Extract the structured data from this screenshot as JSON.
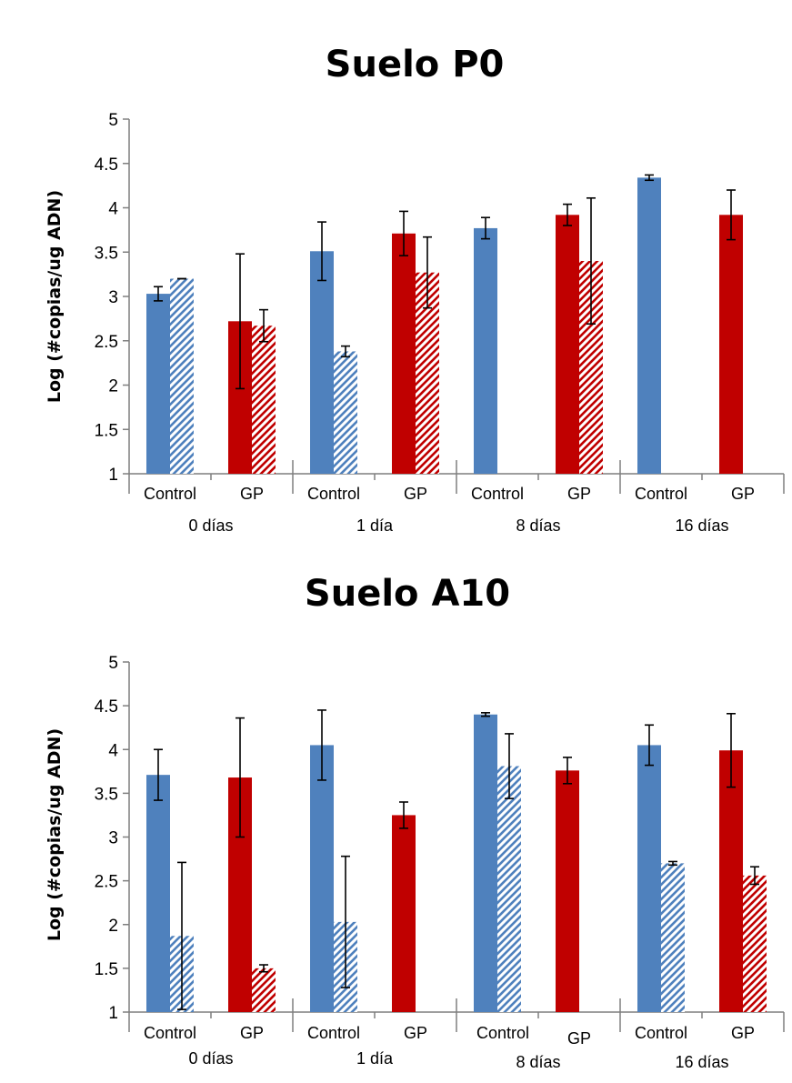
{
  "chart_data": [
    {
      "type": "bar",
      "title": "Suelo P0",
      "ylabel": "Log (#copias/ug ADN)",
      "xlabel": "",
      "ylim": [
        1,
        5
      ],
      "yticks": [
        "1",
        "1.5",
        "2",
        "2.5",
        "3",
        "3.5",
        "4",
        "4.5",
        "5"
      ],
      "grid": false,
      "categories": [
        "Control",
        "GP",
        "Control",
        "GP",
        "Control",
        "GP",
        "Control",
        "GP"
      ],
      "groups": [
        "0 días",
        "1 día",
        "8 días",
        "16 días"
      ],
      "series": [
        {
          "fill": "solid",
          "values": [
            3.03,
            2.72,
            3.51,
            3.71,
            3.77,
            3.92,
            4.34,
            3.92
          ],
          "err": [
            0.08,
            0.76,
            0.33,
            0.25,
            0.12,
            0.12,
            0.03,
            0.28
          ]
        },
        {
          "fill": "hatched",
          "values": [
            3.2,
            2.67,
            2.38,
            3.27,
            null,
            3.4,
            null,
            null
          ],
          "err": [
            0.0,
            0.18,
            0.06,
            0.4,
            null,
            0.71,
            null,
            null
          ]
        }
      ],
      "colors": {
        "control": "#4f81bd",
        "gp": "#c00000"
      }
    },
    {
      "type": "bar",
      "title": "Suelo A10",
      "ylabel": "Log (#copias/ug ADN)",
      "xlabel": "",
      "ylim": [
        1,
        5
      ],
      "yticks": [
        "1",
        "1.5",
        "2",
        "2.5",
        "3",
        "3.5",
        "4",
        "4.5",
        "5"
      ],
      "grid": false,
      "categories": [
        "Control",
        "GP",
        "Control",
        "GP",
        "Control",
        "GP",
        "Control",
        "GP"
      ],
      "groups": [
        "0 días",
        "1 día",
        "8 días",
        "16 días"
      ],
      "series": [
        {
          "fill": "solid",
          "values": [
            3.71,
            3.68,
            4.05,
            3.25,
            4.4,
            3.76,
            4.05,
            3.99
          ],
          "err": [
            0.29,
            0.68,
            0.4,
            0.15,
            0.02,
            0.15,
            0.23,
            0.42
          ]
        },
        {
          "fill": "hatched",
          "values": [
            1.87,
            1.5,
            2.03,
            null,
            3.81,
            null,
            2.7,
            2.56
          ],
          "err": [
            0.84,
            0.04,
            0.75,
            null,
            0.37,
            null,
            0.02,
            0.1
          ]
        }
      ],
      "colors": {
        "control": "#4f81bd",
        "gp": "#c00000"
      }
    }
  ]
}
